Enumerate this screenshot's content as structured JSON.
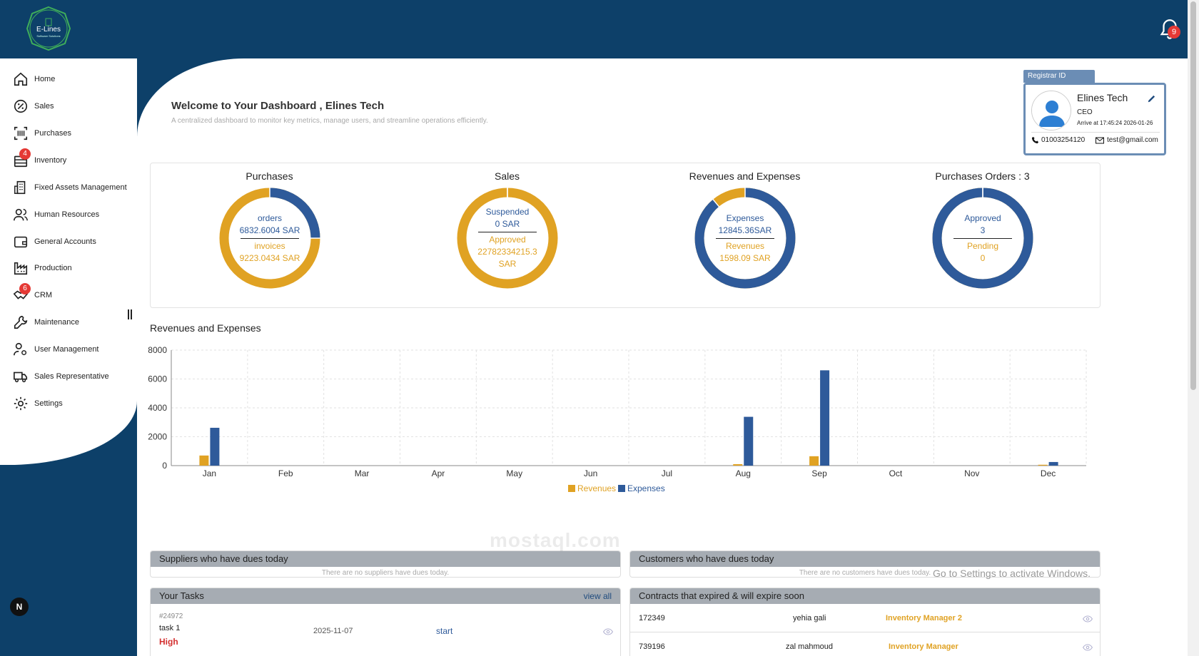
{
  "brand": {
    "logo_text": "E-Lines",
    "logo_sub": "Software Solutions"
  },
  "notifications": {
    "count": "9"
  },
  "sidebar": {
    "items": [
      {
        "label": "Home",
        "icon": "home-icon",
        "badge": ""
      },
      {
        "label": "Sales",
        "icon": "percent-icon",
        "badge": ""
      },
      {
        "label": "Purchases",
        "icon": "scan-icon",
        "badge": ""
      },
      {
        "label": "Inventory",
        "icon": "inventory-icon",
        "badge": "4"
      },
      {
        "label": "Fixed Assets Management",
        "icon": "building-icon",
        "badge": ""
      },
      {
        "label": "Human Resources",
        "icon": "users-icon",
        "badge": ""
      },
      {
        "label": "General Accounts",
        "icon": "wallet-icon",
        "badge": ""
      },
      {
        "label": "Production",
        "icon": "factory-icon",
        "badge": ""
      },
      {
        "label": "CRM",
        "icon": "handshake-icon",
        "badge": "6"
      },
      {
        "label": "Maintenance",
        "icon": "wrench-icon",
        "badge": ""
      },
      {
        "label": "User Management",
        "icon": "user-gear-icon",
        "badge": ""
      },
      {
        "label": "Sales Representative",
        "icon": "truck-icon",
        "badge": ""
      },
      {
        "label": "Settings",
        "icon": "gear-icon",
        "badge": ""
      }
    ]
  },
  "welcome": {
    "title": "Welcome to Your Dashboard , Elines Tech",
    "subtitle": "A centralized dashboard to monitor key metrics, manage users, and streamline operations efficiently."
  },
  "profile": {
    "tab_label": "Registrar ID",
    "name": "Elines Tech",
    "role": "CEO",
    "arrive": "Arrive at 17:45:24 2026-01-26",
    "phone": "01003254120",
    "email": "test@gmail.com"
  },
  "stats": [
    {
      "title": "Purchases",
      "top_label": "orders",
      "top_value": "6832.6004 SAR",
      "bottom_label": "invoices",
      "bottom_value": "9223.0434 SAR",
      "blue_fraction": 0.25
    },
    {
      "title": "Sales",
      "top_label": "Suspended",
      "top_value": "0 SAR",
      "bottom_label": "Approved",
      "bottom_value": "22782334215.3 SAR",
      "blue_fraction": 0.0
    },
    {
      "title": "Revenues and Expenses",
      "top_label": "Expenses",
      "top_value": "12845.36SAR",
      "bottom_label": "Revenues",
      "bottom_value": "1598.09 SAR",
      "blue_fraction": 0.89
    },
    {
      "title": "Purchases Orders : 3",
      "top_label": "Approved",
      "top_value": "3",
      "bottom_label": "Pending",
      "bottom_value": "0",
      "blue_fraction": 1.0
    }
  ],
  "colors": {
    "blue": "#2e5a9a",
    "gold": "#e0a223",
    "navy": "#0d4069"
  },
  "chart_data": {
    "type": "bar",
    "title": "Revenues and Expenses",
    "categories": [
      "Jan",
      "Feb",
      "Mar",
      "Apr",
      "May",
      "Jun",
      "Jul",
      "Aug",
      "Sep",
      "Oct",
      "Nov",
      "Dec"
    ],
    "series": [
      {
        "name": "Revenues",
        "color": "#e0a223",
        "values": [
          700,
          0,
          0,
          0,
          0,
          0,
          0,
          100,
          650,
          0,
          0,
          60
        ]
      },
      {
        "name": "Expenses",
        "color": "#2e5a9a",
        "values": [
          2620,
          0,
          0,
          0,
          0,
          0,
          0,
          3380,
          6600,
          0,
          0,
          250
        ]
      }
    ],
    "yticks": [
      "0",
      "2000",
      "4000",
      "6000",
      "8000"
    ],
    "ylim": [
      0,
      8000
    ],
    "grid": true,
    "legend": "bottom"
  },
  "suppliers": {
    "title": "Suppliers who have dues today",
    "empty": "There are no suppliers have dues today."
  },
  "customers": {
    "title": "Customers who have dues today",
    "empty": "There are no customers have dues today."
  },
  "tasks": {
    "title": "Your Tasks",
    "view_all": "view all",
    "items": [
      {
        "id": "#24972",
        "name": "task 1",
        "priority": "High",
        "date": "2025-11-07",
        "action": "start"
      }
    ]
  },
  "contracts": {
    "title": "Contracts that expired & will expire soon",
    "rows": [
      {
        "id": "172349",
        "name": "yehia gali",
        "role": "Inventory Manager 2"
      },
      {
        "id": "739196",
        "name": "zal mahmoud",
        "role": "Inventory Manager"
      }
    ]
  },
  "windows_notice": "Go to Settings to activate Windows.",
  "watermark": "mostaql.com",
  "next_badge": "N"
}
